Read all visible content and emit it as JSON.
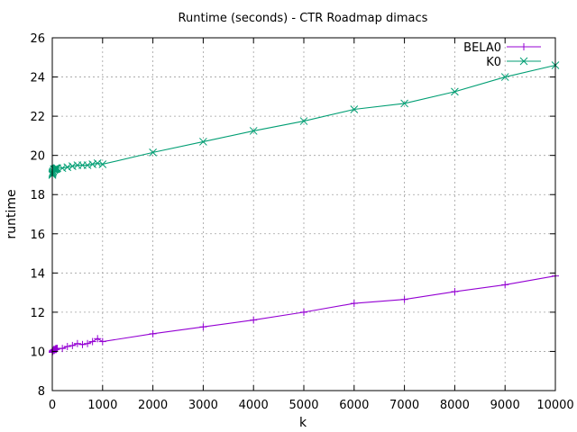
{
  "chart_data": {
    "type": "line",
    "title": "Runtime (seconds) - CTR Roadmap dimacs",
    "xlabel": "k",
    "ylabel": "runtime",
    "xlim": [
      0,
      10000
    ],
    "ylim": [
      8,
      26
    ],
    "xticks": [
      0,
      1000,
      2000,
      3000,
      4000,
      5000,
      6000,
      7000,
      8000,
      9000,
      10000
    ],
    "yticks": [
      8,
      10,
      12,
      14,
      16,
      18,
      20,
      22,
      24,
      26
    ],
    "grid": true,
    "legend_position": "top-right",
    "series": [
      {
        "name": "BELA0",
        "color": "#9400d3",
        "marker": "plus",
        "points": [
          [
            1,
            9.95
          ],
          [
            2,
            10.0
          ],
          [
            5,
            10.05
          ],
          [
            10,
            10.0
          ],
          [
            20,
            10.05
          ],
          [
            30,
            10.1
          ],
          [
            40,
            10.05
          ],
          [
            50,
            10.1
          ],
          [
            60,
            10.1
          ],
          [
            70,
            10.15
          ],
          [
            80,
            10.1
          ],
          [
            90,
            10.15
          ],
          [
            100,
            10.15
          ],
          [
            200,
            10.15
          ],
          [
            300,
            10.25
          ],
          [
            400,
            10.3
          ],
          [
            500,
            10.4
          ],
          [
            600,
            10.35
          ],
          [
            700,
            10.4
          ],
          [
            800,
            10.5
          ],
          [
            900,
            10.65
          ],
          [
            1000,
            10.5
          ],
          [
            2000,
            10.9
          ],
          [
            3000,
            11.25
          ],
          [
            4000,
            11.6
          ],
          [
            5000,
            12.0
          ],
          [
            6000,
            12.45
          ],
          [
            7000,
            12.65
          ],
          [
            8000,
            13.05
          ],
          [
            9000,
            13.4
          ],
          [
            10000,
            13.85
          ]
        ]
      },
      {
        "name": "K0",
        "color": "#009e73",
        "marker": "cross",
        "points": [
          [
            1,
            19.0
          ],
          [
            2,
            19.05
          ],
          [
            5,
            19.1
          ],
          [
            10,
            19.15
          ],
          [
            20,
            19.2
          ],
          [
            30,
            19.3
          ],
          [
            40,
            19.25
          ],
          [
            50,
            19.3
          ],
          [
            60,
            19.3
          ],
          [
            70,
            19.35
          ],
          [
            80,
            19.3
          ],
          [
            90,
            19.35
          ],
          [
            100,
            19.35
          ],
          [
            200,
            19.35
          ],
          [
            300,
            19.4
          ],
          [
            400,
            19.45
          ],
          [
            500,
            19.5
          ],
          [
            600,
            19.5
          ],
          [
            700,
            19.5
          ],
          [
            800,
            19.55
          ],
          [
            900,
            19.6
          ],
          [
            1000,
            19.55
          ],
          [
            2000,
            20.15
          ],
          [
            3000,
            20.7
          ],
          [
            4000,
            21.25
          ],
          [
            5000,
            21.75
          ],
          [
            6000,
            22.35
          ],
          [
            7000,
            22.65
          ],
          [
            8000,
            23.25
          ],
          [
            9000,
            24.0
          ],
          [
            10000,
            24.6
          ]
        ]
      }
    ]
  }
}
